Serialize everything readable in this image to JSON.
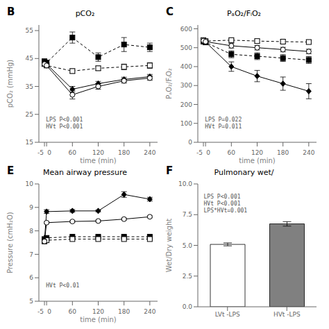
{
  "chart_data": [
    {
      "type": "line",
      "panel_label": "B",
      "title": "pCO₂",
      "xlabel": "time (min)",
      "ylabel": "pCO₂ (mmHg)",
      "xlim": [
        -18,
        258
      ],
      "xticks": [
        -5,
        0,
        60,
        120,
        180,
        240
      ],
      "ylim": [
        15,
        57
      ],
      "yticks": [
        15,
        25,
        35,
        45,
        55
      ],
      "grid": false,
      "annotation": "LPS P<0.001\nHVt P<0.001",
      "x": [
        -5,
        0,
        60,
        120,
        180,
        240
      ],
      "series": [
        {
          "color": "black",
          "marker": "filled_square",
          "line_style": "dashed",
          "values": [
            44.0,
            43.5,
            52.5,
            45.5,
            50.0,
            49.0
          ],
          "yerr": [
            0.8,
            0.8,
            2.0,
            1.5,
            2.5,
            1.5
          ]
        },
        {
          "color": "black",
          "marker": "open_square",
          "line_style": "dashed",
          "values": [
            43.0,
            42.5,
            40.5,
            41.5,
            42.0,
            42.5
          ],
          "yerr": [
            0.5,
            0.5,
            0.8,
            0.8,
            1.0,
            1.0
          ]
        },
        {
          "color": "black",
          "marker": "filled_diamond",
          "line_style": "solid",
          "values": [
            43.5,
            43.0,
            34.0,
            36.0,
            37.5,
            38.5
          ],
          "yerr": [
            0.5,
            0.5,
            1.0,
            0.8,
            0.8,
            0.8
          ]
        },
        {
          "color": "black",
          "marker": "open_circle",
          "line_style": "solid",
          "values": [
            43.0,
            42.5,
            32.0,
            35.0,
            37.0,
            38.0
          ],
          "yerr": [
            0.5,
            0.5,
            1.5,
            1.0,
            0.8,
            0.8
          ]
        }
      ]
    },
    {
      "type": "line",
      "panel_label": "C",
      "title": "PₐO₂/FᵢO₂",
      "xlabel": "time (min)",
      "ylabel": "PₐO₂/FᵢO₂",
      "xlim": [
        -18,
        258
      ],
      "xticks": [
        -5,
        0,
        60,
        120,
        180,
        240
      ],
      "ylim": [
        0,
        620
      ],
      "yticks": [
        0,
        100,
        200,
        300,
        400,
        500,
        600
      ],
      "grid": false,
      "annotation": "LPS P=0.022\nHVt P=0.011",
      "x": [
        -5,
        0,
        60,
        120,
        180,
        240
      ],
      "series": [
        {
          "color": "black",
          "marker": "open_square",
          "line_style": "dashed",
          "values": [
            540,
            535,
            540,
            535,
            532,
            530
          ],
          "yerr": [
            8,
            8,
            10,
            10,
            10,
            10
          ]
        },
        {
          "color": "black",
          "marker": "filled_square",
          "line_style": "dashed",
          "values": [
            532,
            528,
            465,
            455,
            445,
            435
          ],
          "yerr": [
            8,
            8,
            18,
            18,
            18,
            18
          ]
        },
        {
          "color": "black",
          "marker": "filled_diamond",
          "line_style": "solid",
          "values": [
            535,
            530,
            400,
            350,
            310,
            270
          ],
          "yerr": [
            8,
            8,
            25,
            30,
            35,
            40
          ]
        },
        {
          "color": "black",
          "marker": "open_circle",
          "line_style": "solid",
          "values": [
            537,
            532,
            510,
            500,
            490,
            480
          ],
          "yerr": [
            8,
            8,
            12,
            12,
            12,
            12
          ]
        }
      ]
    },
    {
      "type": "line",
      "panel_label": "E",
      "title": "Mean airway pressure",
      "xlabel": "time (min)",
      "ylabel": "Pressure (cmH₂O)",
      "xlim": [
        -18,
        258
      ],
      "xticks": [
        -5,
        0,
        60,
        120,
        180,
        240
      ],
      "ylim": [
        5,
        10
      ],
      "yticks": [
        5,
        6,
        7,
        8,
        9,
        10
      ],
      "grid": false,
      "annotation": "HVt P<0.01",
      "x": [
        -5,
        0,
        60,
        120,
        180,
        240
      ],
      "series": [
        {
          "color": "black",
          "marker": "filled_square",
          "line_style": "dashed",
          "values": [
            7.65,
            7.7,
            7.75,
            7.75,
            7.75,
            7.75
          ],
          "yerr": [
            0.03,
            0.03,
            0.03,
            0.03,
            0.03,
            0.03
          ]
        },
        {
          "color": "black",
          "marker": "open_square",
          "line_style": "dashed",
          "values": [
            7.55,
            7.6,
            7.65,
            7.65,
            7.65,
            7.65
          ],
          "yerr": [
            0.03,
            0.03,
            0.03,
            0.03,
            0.03,
            0.03
          ]
        },
        {
          "color": "black",
          "marker": "filled_diamond",
          "line_style": "solid",
          "values": [
            7.6,
            8.82,
            8.85,
            8.85,
            9.55,
            9.35
          ],
          "yerr": [
            0.04,
            0.08,
            0.06,
            0.04,
            0.12,
            0.08
          ]
        },
        {
          "color": "black",
          "marker": "open_circle",
          "line_style": "solid",
          "values": [
            7.55,
            8.35,
            8.4,
            8.42,
            8.5,
            8.6
          ],
          "yerr": [
            0.04,
            0.04,
            0.04,
            0.04,
            0.04,
            0.04
          ]
        }
      ]
    },
    {
      "type": "bar",
      "panel_label": "F",
      "title": "Pulmonary wet/",
      "ylabel": "Wet/Dry weight",
      "ylim": [
        0,
        10.0
      ],
      "yticks": [
        {
          "value": 0,
          "label": "0.0"
        },
        2.5,
        {
          "value": 5,
          "label": "5.0"
        },
        7.5,
        {
          "value": 10,
          "label": "10.0"
        }
      ],
      "grid": false,
      "annotation": "LPS P<0.001\nHVt P<0.001\nLPS*HVt=0.001",
      "categories": [
        "LVt -LPS",
        "HVt -LPS"
      ],
      "values": [
        5.08,
        6.75
      ],
      "yerr": [
        0.12,
        0.18
      ],
      "colors": [
        "white",
        "#808080"
      ]
    }
  ]
}
